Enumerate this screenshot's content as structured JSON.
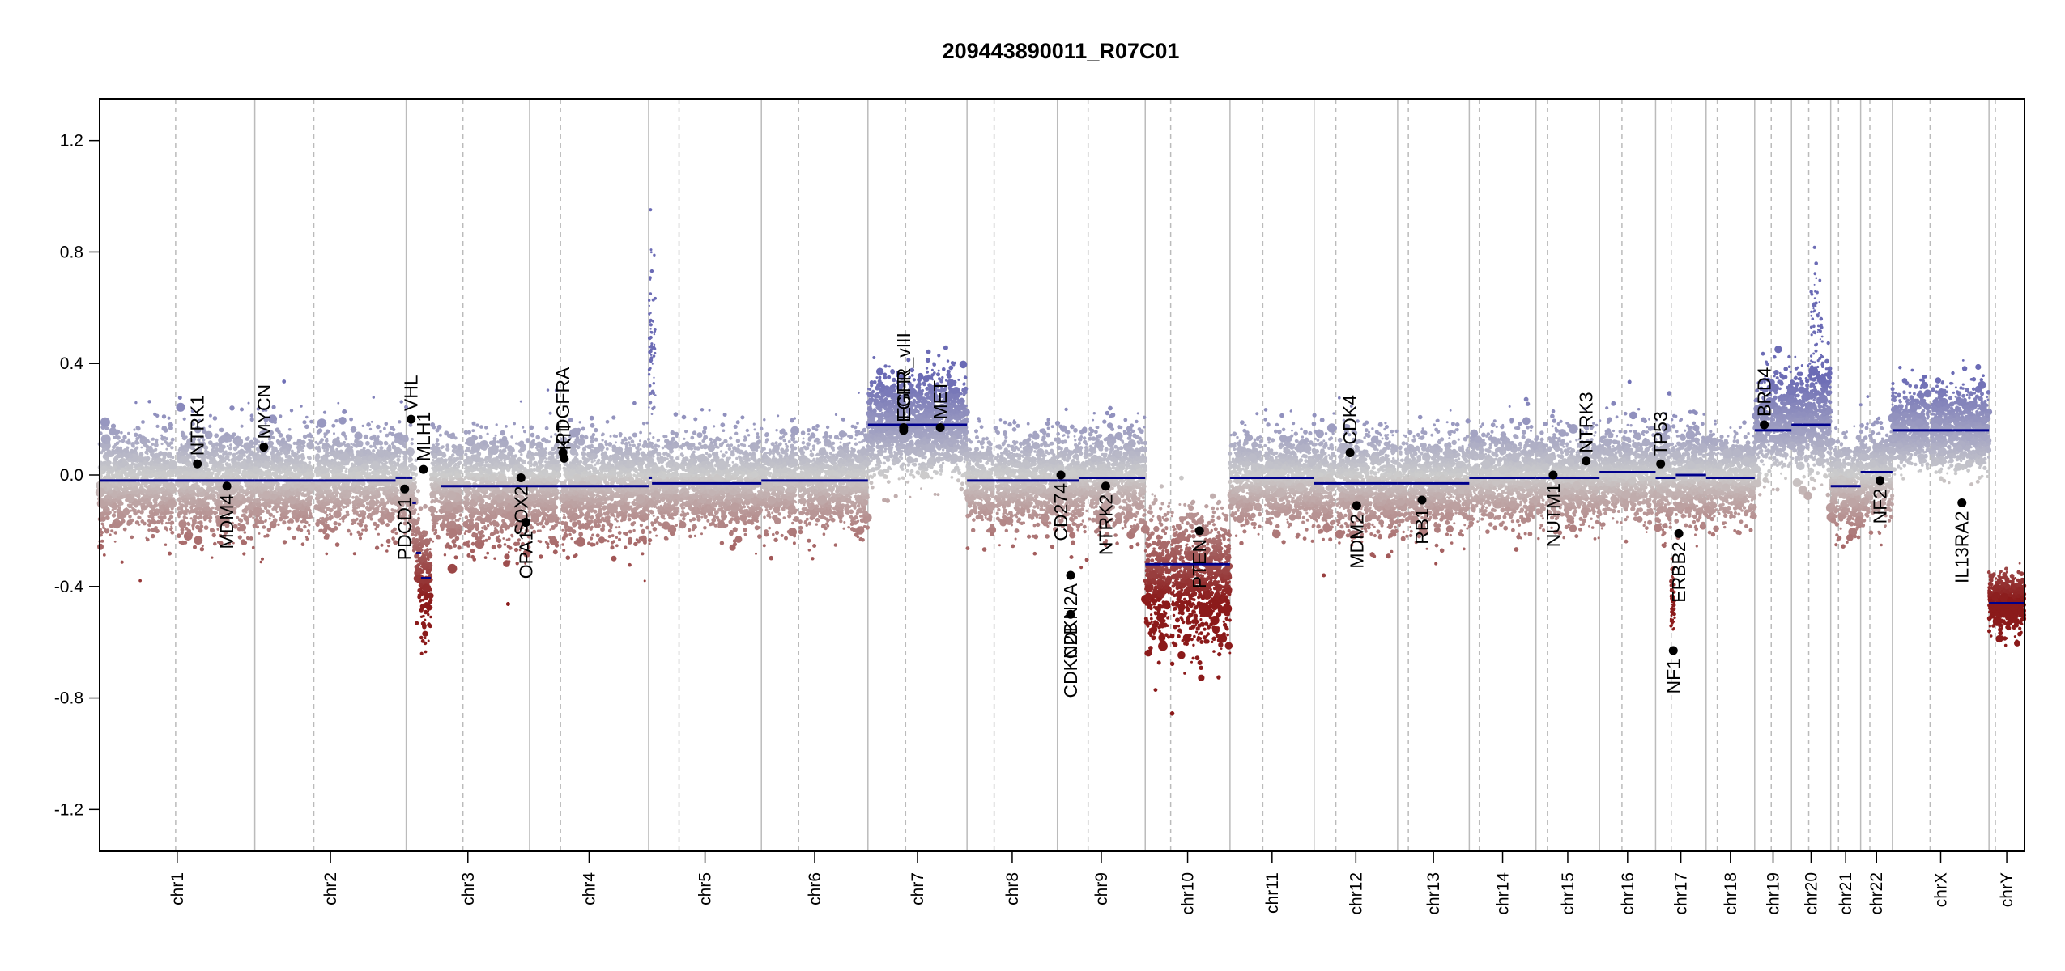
{
  "chart_data": {
    "type": "scatter",
    "title": "209443890011_R07C01",
    "xlabel": "",
    "ylabel": "",
    "ylim": [
      -1.35,
      1.35
    ],
    "yticks": [
      "1.2",
      "0.8",
      "0.4",
      "0.0",
      "-0.4",
      "-0.8",
      "-1.2"
    ],
    "grid": false,
    "colors": {
      "gain": "#6b6bb5",
      "neutral": "#cccccc",
      "loss": "#8b1a1a",
      "segment": "#00008b",
      "gene_point": "#000000",
      "boundary": "#bbbbbb",
      "centromere": "#bbbbbb"
    },
    "chromosomes": [
      {
        "name": "chr1",
        "length": 249,
        "centromere": 0.49,
        "noise": 0.09,
        "skew": 0
      },
      {
        "name": "chr2",
        "length": 243,
        "centromere": 0.39,
        "noise": 0.09,
        "skew": 0
      },
      {
        "name": "chr3",
        "length": 198,
        "centromere": 0.46,
        "noise": 0.09,
        "skew": -0.02
      },
      {
        "name": "chr4",
        "length": 191,
        "centromere": 0.26,
        "noise": 0.09,
        "skew": 0
      },
      {
        "name": "chr5",
        "length": 181,
        "centromere": 0.27,
        "noise": 0.08,
        "skew": 0
      },
      {
        "name": "chr6",
        "length": 171,
        "centromere": 0.35,
        "noise": 0.08,
        "skew": 0
      },
      {
        "name": "chr7",
        "length": 159,
        "centromere": 0.38,
        "noise": 0.09,
        "skew": 0
      },
      {
        "name": "chr8",
        "length": 145,
        "centromere": 0.3,
        "noise": 0.08,
        "skew": 0
      },
      {
        "name": "chr9",
        "length": 141,
        "centromere": 0.35,
        "noise": 0.09,
        "skew": 0
      },
      {
        "name": "chr10",
        "length": 136,
        "centromere": 0.3,
        "noise": 0.12,
        "skew": -0.05
      },
      {
        "name": "chr11",
        "length": 135,
        "centromere": 0.39,
        "noise": 0.08,
        "skew": 0
      },
      {
        "name": "chr12",
        "length": 134,
        "centromere": 0.26,
        "noise": 0.09,
        "skew": 0
      },
      {
        "name": "chr13",
        "length": 115,
        "centromere": 0.15,
        "noise": 0.08,
        "skew": 0
      },
      {
        "name": "chr14",
        "length": 107,
        "centromere": 0.15,
        "noise": 0.08,
        "skew": 0
      },
      {
        "name": "chr15",
        "length": 102,
        "centromere": 0.18,
        "noise": 0.08,
        "skew": 0
      },
      {
        "name": "chr16",
        "length": 90,
        "centromere": 0.4,
        "noise": 0.08,
        "skew": 0
      },
      {
        "name": "chr17",
        "length": 81,
        "centromere": 0.31,
        "noise": 0.09,
        "skew": 0
      },
      {
        "name": "chr18",
        "length": 78,
        "centromere": 0.23,
        "noise": 0.08,
        "skew": 0
      },
      {
        "name": "chr19",
        "length": 59,
        "centromere": 0.45,
        "noise": 0.09,
        "skew": 0.02
      },
      {
        "name": "chr20",
        "length": 63,
        "centromere": 0.44,
        "noise": 0.09,
        "skew": 0.02
      },
      {
        "name": "chr21",
        "length": 48,
        "centromere": 0.26,
        "noise": 0.08,
        "skew": 0
      },
      {
        "name": "chr22",
        "length": 51,
        "centromere": 0.29,
        "noise": 0.08,
        "skew": 0
      },
      {
        "name": "chrX",
        "length": 155,
        "centromere": 0.39,
        "noise": 0.07,
        "skew": 0.01
      },
      {
        "name": "chrY",
        "length": 57,
        "centromere": 0.18,
        "noise": 0.05,
        "skew": 0
      }
    ],
    "segments": [
      {
        "chr": "chr1",
        "start": 0,
        "end": 1,
        "value": -0.02
      },
      {
        "chr": "chr2",
        "start": 0,
        "end": 0.93,
        "value": -0.02
      },
      {
        "chr": "chr2",
        "start": 0.93,
        "end": 1,
        "value": -0.01
      },
      {
        "chr": "chr3",
        "start": 0,
        "end": 0.05,
        "value": -0.01
      },
      {
        "chr": "chr3",
        "start": 0.05,
        "end": 0.08,
        "value": -0.1
      },
      {
        "chr": "chr3",
        "start": 0.08,
        "end": 0.12,
        "value": -0.28
      },
      {
        "chr": "chr3",
        "start": 0.12,
        "end": 0.2,
        "value": -0.37
      },
      {
        "chr": "chr3",
        "start": 0.28,
        "end": 1,
        "value": -0.04
      },
      {
        "chr": "chr4",
        "start": 0,
        "end": 1,
        "value": -0.04
      },
      {
        "chr": "chr5",
        "start": 0,
        "end": 0.03,
        "value": -0.01
      },
      {
        "chr": "chr5",
        "start": 0.03,
        "end": 1,
        "value": -0.03
      },
      {
        "chr": "chr6",
        "start": 0,
        "end": 1,
        "value": -0.02
      },
      {
        "chr": "chr7",
        "start": 0,
        "end": 1,
        "value": 0.18
      },
      {
        "chr": "chr8",
        "start": 0,
        "end": 1,
        "value": -0.02
      },
      {
        "chr": "chr9",
        "start": 0,
        "end": 0.25,
        "value": -0.02
      },
      {
        "chr": "chr9",
        "start": 0.25,
        "end": 1,
        "value": -0.01
      },
      {
        "chr": "chr10",
        "start": 0,
        "end": 1,
        "value": -0.32
      },
      {
        "chr": "chr11",
        "start": 0,
        "end": 1,
        "value": -0.01
      },
      {
        "chr": "chr12",
        "start": 0,
        "end": 1,
        "value": -0.03
      },
      {
        "chr": "chr13",
        "start": 0,
        "end": 1,
        "value": -0.03
      },
      {
        "chr": "chr14",
        "start": 0,
        "end": 1,
        "value": -0.01
      },
      {
        "chr": "chr15",
        "start": 0,
        "end": 1,
        "value": -0.01
      },
      {
        "chr": "chr16",
        "start": 0,
        "end": 1,
        "value": 0.01
      },
      {
        "chr": "chr17",
        "start": 0,
        "end": 0.4,
        "value": -0.01
      },
      {
        "chr": "chr17",
        "start": 0.4,
        "end": 1,
        "value": 0.0
      },
      {
        "chr": "chr18",
        "start": 0,
        "end": 1,
        "value": -0.01
      },
      {
        "chr": "chr19",
        "start": 0,
        "end": 1,
        "value": 0.16
      },
      {
        "chr": "chr20",
        "start": 0,
        "end": 1,
        "value": 0.18
      },
      {
        "chr": "chr21",
        "start": 0,
        "end": 1,
        "value": -0.04
      },
      {
        "chr": "chr22",
        "start": 0,
        "end": 1,
        "value": 0.01
      },
      {
        "chr": "chrX",
        "start": 0,
        "end": 1,
        "value": 0.16
      },
      {
        "chr": "chrY",
        "start": 0,
        "end": 1,
        "value": -0.46
      }
    ],
    "focal": [
      {
        "chr": "chr5",
        "start": 0.0,
        "end": 0.06,
        "mean": 0.45,
        "spread": 0.35
      },
      {
        "chr": "chr20",
        "start": 0.5,
        "end": 0.8,
        "mean": 0.52,
        "spread": 0.25
      },
      {
        "chr": "chr17",
        "start": 0.3,
        "end": 0.38,
        "mean": -0.45,
        "spread": 0.15
      }
    ],
    "genes": [
      {
        "label": "NTRK1",
        "chr": "chr1",
        "pos": 0.63,
        "value": 0.04,
        "side": "above"
      },
      {
        "label": "MDM4",
        "chr": "chr1",
        "pos": 0.82,
        "value": -0.04,
        "side": "below"
      },
      {
        "label": "MYCN",
        "chr": "chr2",
        "pos": 0.06,
        "value": 0.1,
        "side": "above"
      },
      {
        "label": "VHL",
        "chr": "chr3",
        "pos": 0.04,
        "value": 0.2,
        "side": "above"
      },
      {
        "label": "PDCD1",
        "chr": "chr2",
        "pos": 0.99,
        "value": -0.05,
        "side": "below"
      },
      {
        "label": "MLH1",
        "chr": "chr3",
        "pos": 0.14,
        "value": 0.02,
        "side": "above"
      },
      {
        "label": "SOX2",
        "chr": "chr3",
        "pos": 0.93,
        "value": -0.01,
        "side": "below"
      },
      {
        "label": "OPA1",
        "chr": "chr3",
        "pos": 0.97,
        "value": -0.17,
        "side": "below"
      },
      {
        "label": "KIT",
        "chr": "chr4",
        "pos": 0.29,
        "value": 0.06,
        "side": "above"
      },
      {
        "label": "PDGFRA",
        "chr": "chr4",
        "pos": 0.28,
        "value": 0.08,
        "side": "above"
      },
      {
        "label": "EGFR_vIII",
        "chr": "chr7",
        "pos": 0.36,
        "value": 0.17,
        "side": "above"
      },
      {
        "label": "EGFR",
        "chr": "chr7",
        "pos": 0.36,
        "value": 0.16,
        "side": "above"
      },
      {
        "label": "MET",
        "chr": "chr7",
        "pos": 0.73,
        "value": 0.17,
        "side": "above"
      },
      {
        "label": "CD274",
        "chr": "chr9",
        "pos": 0.04,
        "value": 0.0,
        "side": "below"
      },
      {
        "label": "CDKN2A",
        "chr": "chr9",
        "pos": 0.15,
        "value": -0.36,
        "side": "below"
      },
      {
        "label": "CDKN2B",
        "chr": "chr9",
        "pos": 0.15,
        "value": -0.5,
        "side": "below"
      },
      {
        "label": "NTRK2",
        "chr": "chr9",
        "pos": 0.55,
        "value": -0.04,
        "side": "below"
      },
      {
        "label": "PTEN",
        "chr": "chr10",
        "pos": 0.64,
        "value": -0.2,
        "side": "below"
      },
      {
        "label": "CDK4",
        "chr": "chr12",
        "pos": 0.43,
        "value": 0.08,
        "side": "above"
      },
      {
        "label": "MDM2",
        "chr": "chr12",
        "pos": 0.51,
        "value": -0.11,
        "side": "below"
      },
      {
        "label": "RB1",
        "chr": "chr13",
        "pos": 0.34,
        "value": -0.09,
        "side": "below"
      },
      {
        "label": "NUTM1",
        "chr": "chr15",
        "pos": 0.27,
        "value": 0.0,
        "side": "below"
      },
      {
        "label": "NTRK3",
        "chr": "chr15",
        "pos": 0.79,
        "value": 0.05,
        "side": "above"
      },
      {
        "label": "TP53",
        "chr": "chr17",
        "pos": 0.1,
        "value": 0.04,
        "side": "above"
      },
      {
        "label": "NF1",
        "chr": "chr17",
        "pos": 0.35,
        "value": -0.63,
        "side": "below"
      },
      {
        "label": "ERBB2",
        "chr": "chr17",
        "pos": 0.46,
        "value": -0.21,
        "side": "below"
      },
      {
        "label": "BRD4",
        "chr": "chr19",
        "pos": 0.26,
        "value": 0.18,
        "side": "above"
      },
      {
        "label": "NF2",
        "chr": "chr22",
        "pos": 0.61,
        "value": -0.02,
        "side": "below"
      },
      {
        "label": "IL13RA2",
        "chr": "chrX",
        "pos": 0.72,
        "value": -0.1,
        "side": "below"
      }
    ]
  }
}
